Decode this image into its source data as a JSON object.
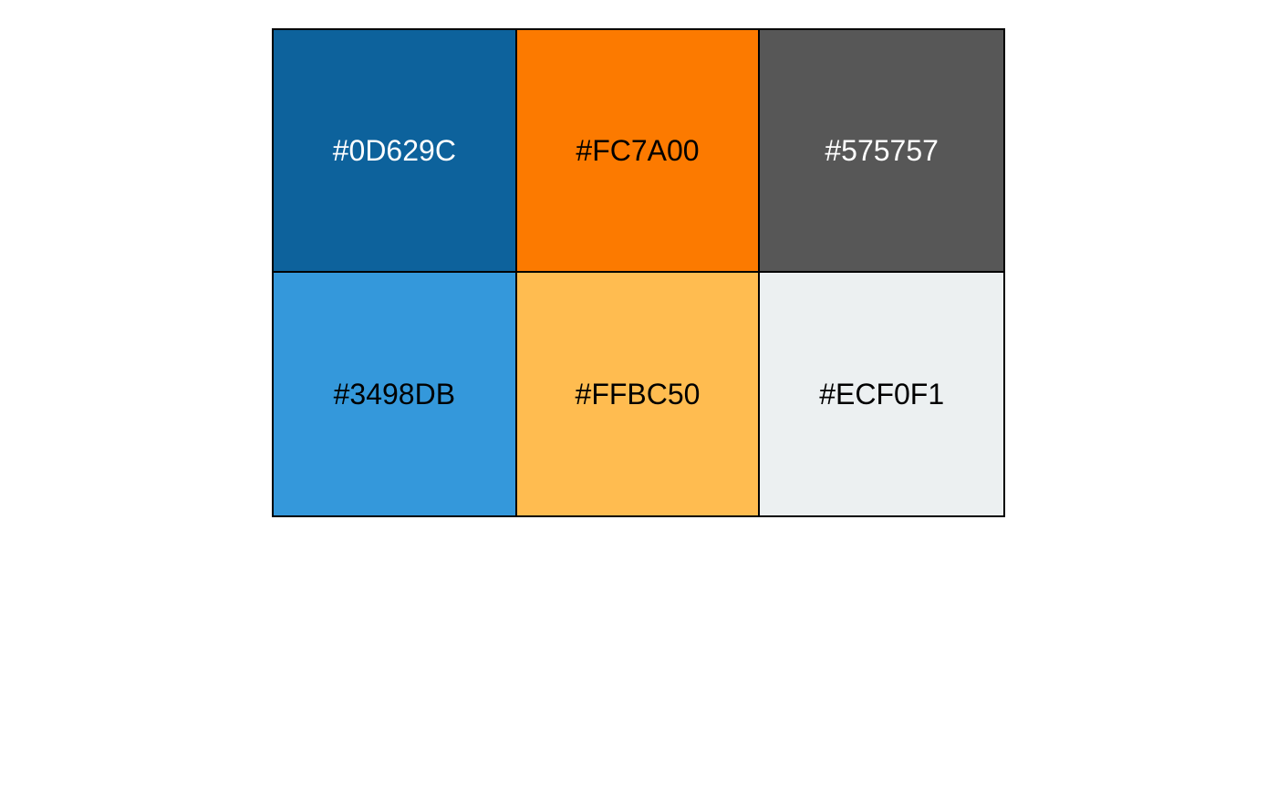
{
  "swatches": [
    {
      "label": "#0D629C",
      "color": "#0D629C",
      "text_color": "#FFFFFF"
    },
    {
      "label": "#FC7A00",
      "color": "#FC7A00",
      "text_color": "#000000"
    },
    {
      "label": "#575757",
      "color": "#575757",
      "text_color": "#FFFFFF"
    },
    {
      "label": "#3498DB",
      "color": "#3498DB",
      "text_color": "#000000"
    },
    {
      "label": "#FFBC50",
      "color": "#FFBC50",
      "text_color": "#000000"
    },
    {
      "label": "#ECF0F1",
      "color": "#ECF0F1",
      "text_color": "#000000"
    }
  ]
}
